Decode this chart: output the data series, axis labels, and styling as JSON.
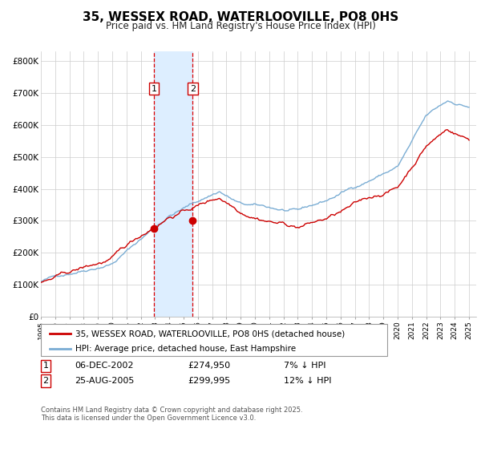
{
  "title": "35, WESSEX ROAD, WATERLOOVILLE, PO8 0HS",
  "subtitle": "Price paid vs. HM Land Registry's House Price Index (HPI)",
  "ylabel_ticks": [
    "£0",
    "£100K",
    "£200K",
    "£300K",
    "£400K",
    "£500K",
    "£600K",
    "£700K",
    "£800K"
  ],
  "ytick_values": [
    0,
    100000,
    200000,
    300000,
    400000,
    500000,
    600000,
    700000,
    800000
  ],
  "ylim": [
    0,
    830000
  ],
  "xlim_start": 1995.0,
  "xlim_end": 2025.5,
  "sale1_date": 2002.92,
  "sale1_price": 274950,
  "sale2_date": 2005.64,
  "sale2_price": 299995,
  "red_line_color": "#cc0000",
  "blue_line_color": "#7aadd4",
  "shade_color": "#ddeeff",
  "vline_color": "#dd0000",
  "grid_color": "#cccccc",
  "bg_color": "#ffffff",
  "legend_label_red": "35, WESSEX ROAD, WATERLOOVILLE, PO8 0HS (detached house)",
  "legend_label_blue": "HPI: Average price, detached house, East Hampshire",
  "sale1_text": "06-DEC-2002",
  "sale1_price_text": "£274,950",
  "sale1_hpi_text": "7% ↓ HPI",
  "sale2_text": "25-AUG-2005",
  "sale2_price_text": "£299,995",
  "sale2_hpi_text": "12% ↓ HPI",
  "footer_text": "Contains HM Land Registry data © Crown copyright and database right 2025.\nThis data is licensed under the Open Government Licence v3.0."
}
